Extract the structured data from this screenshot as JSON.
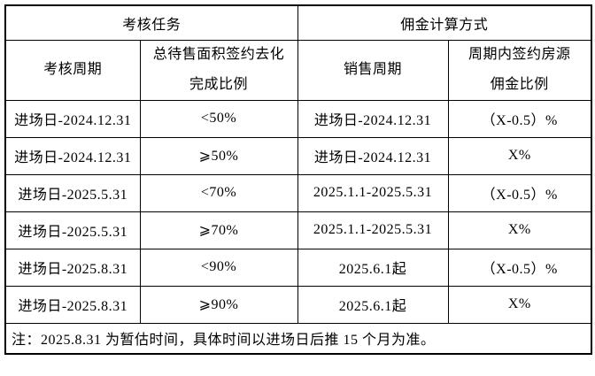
{
  "colors": {
    "border": "#000000",
    "background": "#ffffff",
    "text": "#000000"
  },
  "table": {
    "group_headers": [
      "考核任务",
      "佣金计算方式"
    ],
    "column_headers": [
      {
        "lines": [
          "考核周期"
        ]
      },
      {
        "lines": [
          "总待售面积签约去化",
          "完成比例"
        ]
      },
      {
        "lines": [
          "销售周期"
        ]
      },
      {
        "lines": [
          "周期内签约房源",
          "佣金比例"
        ]
      }
    ],
    "rows": [
      [
        "进场日-2024.12.31",
        "<50%",
        "进场日-2024.12.31",
        "（X-0.5）%"
      ],
      [
        "进场日-2024.12.31",
        "⩾50%",
        "进场日-2024.12.31",
        "X%"
      ],
      [
        "进场日-2025.5.31",
        "<70%",
        "2025.1.1-2025.5.31",
        "（X-0.5）%"
      ],
      [
        "进场日-2025.5.31",
        "⩾70%",
        "2025.1.1-2025.5.31",
        "X%"
      ],
      [
        "进场日-2025.8.31",
        "<90%",
        "2025.6.1起",
        "（X-0.5）%"
      ],
      [
        "进场日-2025.8.31",
        "⩾90%",
        "2025.6.1起",
        "X%"
      ]
    ],
    "footnote": "注：2025.8.31 为暂估时间，具体时间以进场日后推 15 个月为准。"
  }
}
